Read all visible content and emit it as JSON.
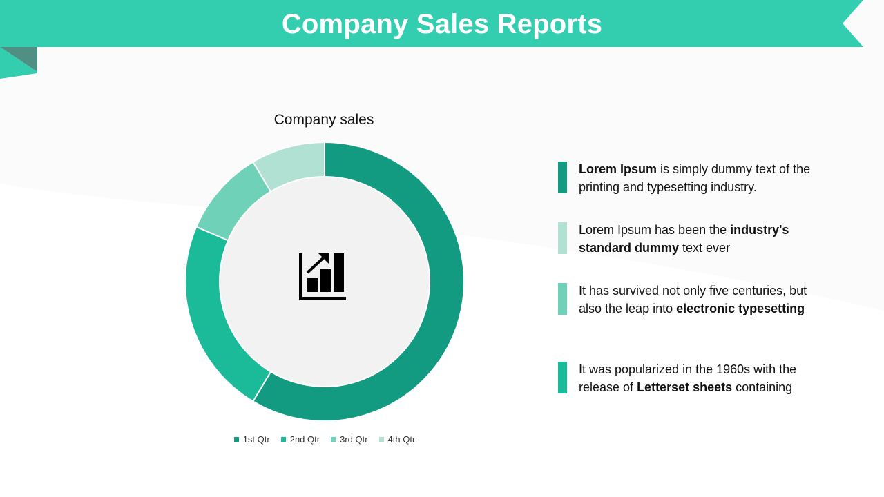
{
  "header": {
    "title": "Company Sales Reports"
  },
  "colors": {
    "banner": "#33cdb0",
    "q1": "#139b82",
    "q2": "#1bbb9a",
    "q3": "#6fd1b8",
    "q4": "#b1e1d3",
    "donut_hole": "#f2f2f2"
  },
  "chart_data": {
    "type": "pie",
    "title": "Company sales",
    "categories": [
      "1st Qtr",
      "2nd Qtr",
      "3rd Qtr",
      "4th Qtr"
    ],
    "values": [
      8.2,
      3.2,
      1.4,
      1.2
    ],
    "donut": true,
    "legend_position": "bottom",
    "center_icon": "bar-chart-growth-icon"
  },
  "notes": [
    {
      "color": "#139b82",
      "segments": [
        {
          "text": "Lorem Ipsum",
          "bold": true
        },
        {
          "text": " is simply dummy text of the printing and typesetting industry.",
          "bold": false
        }
      ]
    },
    {
      "color": "#b1e1d3",
      "segments": [
        {
          "text": "Lorem Ipsum has been the ",
          "bold": false
        },
        {
          "text": "industry's standard dummy",
          "bold": true
        },
        {
          "text": " text ever",
          "bold": false
        }
      ]
    },
    {
      "color": "#6fd1b8",
      "segments": [
        {
          "text": "It has survived not only five centuries, but also the leap into ",
          "bold": false
        },
        {
          "text": "electronic typesetting",
          "bold": true
        }
      ]
    },
    {
      "color": "#1bbb9a",
      "segments": [
        {
          "text": "It was popularized in the 1960s with the release of ",
          "bold": false
        },
        {
          "text": "Letterset sheets",
          "bold": true
        },
        {
          "text": " containing",
          "bold": false
        }
      ]
    }
  ]
}
